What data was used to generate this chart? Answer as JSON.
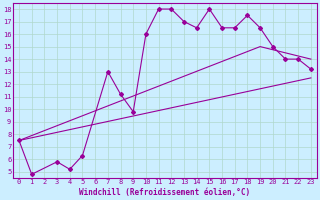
{
  "xlabel": "Windchill (Refroidissement éolien,°C)",
  "background_color": "#cceeff",
  "line_color": "#990099",
  "xlim_min": -0.5,
  "xlim_max": 23.5,
  "ylim_min": 4.5,
  "ylim_max": 18.5,
  "xticks": [
    0,
    1,
    2,
    3,
    4,
    5,
    6,
    7,
    8,
    9,
    10,
    11,
    12,
    13,
    14,
    15,
    16,
    17,
    18,
    19,
    20,
    21,
    22,
    23
  ],
  "yticks": [
    5,
    6,
    7,
    8,
    9,
    10,
    11,
    12,
    13,
    14,
    15,
    16,
    17,
    18
  ],
  "line1_x": [
    0,
    1,
    3,
    4,
    5,
    7,
    8,
    9,
    10,
    11,
    12,
    13,
    14,
    15,
    16,
    17,
    18,
    19,
    20,
    21,
    22,
    23
  ],
  "line1_y": [
    7.5,
    4.8,
    5.8,
    5.2,
    6.3,
    13.0,
    11.2,
    9.8,
    16.0,
    18.0,
    18.0,
    17.0,
    16.5,
    18.0,
    16.5,
    16.5,
    17.5,
    16.5,
    15.0,
    14.0,
    14.0,
    13.2
  ],
  "line2_x": [
    0,
    19,
    23
  ],
  "line2_y": [
    7.5,
    15.0,
    14.0
  ],
  "line3_x": [
    0,
    23
  ],
  "line3_y": [
    7.5,
    12.5
  ],
  "grid_color": "#b0d8cc",
  "marker": "D",
  "markersize": 2,
  "linewidth": 0.8,
  "tick_fontsize": 5,
  "xlabel_fontsize": 5.5
}
